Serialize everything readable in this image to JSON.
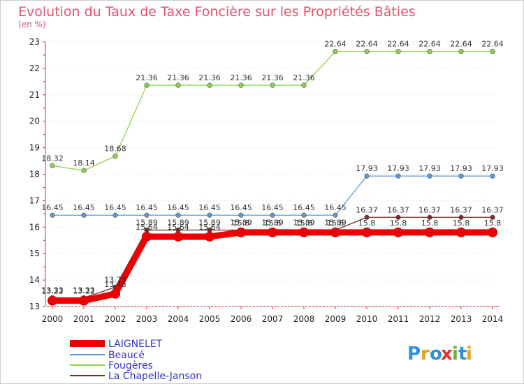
{
  "chart_data": {
    "type": "line",
    "title": "Evolution du Taux de Taxe Foncière sur les Propriétés Bâties",
    "ylabel": "(en %)",
    "xlabel": "",
    "x": [
      "2000",
      "2001",
      "2002",
      "2003",
      "2004",
      "2005",
      "2006",
      "2007",
      "2008",
      "2009",
      "2010",
      "2011",
      "2012",
      "2013",
      "2014"
    ],
    "ylim": [
      13,
      23
    ],
    "yticks": [
      "13",
      "14",
      "15",
      "16",
      "17",
      "18",
      "19",
      "20",
      "21",
      "22",
      "23"
    ],
    "series": [
      {
        "name": "LAIGNELET",
        "color": "#ee0000",
        "values": [
          13.22,
          13.22,
          13.48,
          15.64,
          15.64,
          15.64,
          15.8,
          15.8,
          15.8,
          15.8,
          15.8,
          15.8,
          15.8,
          15.8,
          15.8
        ],
        "labels": [
          "13.22",
          "13.22",
          "13.48",
          "15.64",
          "15.64",
          "15.64",
          "15.8",
          "15.8",
          "15.8",
          "15.8",
          "15.8",
          "15.8",
          "15.8",
          "15.8",
          "15.8"
        ]
      },
      {
        "name": "Beaucé",
        "color": "#5b9bd5",
        "values": [
          16.45,
          16.45,
          16.45,
          16.45,
          16.45,
          16.45,
          16.45,
          16.45,
          16.45,
          16.45,
          17.93,
          17.93,
          17.93,
          17.93,
          17.93
        ],
        "labels": [
          "16.45",
          "16.45",
          "16.45",
          "16.45",
          "16.45",
          "16.45",
          "16.45",
          "16.45",
          "16.45",
          "16.45",
          "17.93",
          "17.93",
          "17.93",
          "17.93",
          "17.93"
        ]
      },
      {
        "name": "Fougères",
        "color": "#8fd14f",
        "values": [
          18.32,
          18.14,
          18.68,
          21.36,
          21.36,
          21.36,
          21.36,
          21.36,
          21.36,
          22.64,
          22.64,
          22.64,
          22.64,
          22.64,
          22.64
        ],
        "labels": [
          "18.32",
          "18.14",
          "18.68",
          "21.36",
          "21.36",
          "21.36",
          "21.36",
          "21.36",
          "21.36",
          "22.64",
          "22.64",
          "22.64",
          "22.64",
          "22.64",
          "22.64"
        ]
      },
      {
        "name": "La Chapelle-Janson",
        "color": "#7a2c2c",
        "values": [
          13.33,
          13.33,
          13.73,
          15.89,
          15.89,
          15.89,
          15.89,
          15.89,
          15.89,
          15.89,
          16.37,
          16.37,
          16.37,
          16.37,
          16.37
        ],
        "labels": [
          "13.33",
          "13.33",
          "13.73",
          "15.89",
          "15.89",
          "15.89",
          "15.89",
          "15.89",
          "15.89",
          "15.89",
          "16.37",
          "16.37",
          "16.37",
          "16.37",
          "16.37"
        ]
      }
    ],
    "legend_position": "bottom-left"
  },
  "logo": {
    "text": "Proxiti",
    "letters": [
      "P",
      "r",
      "o",
      "x",
      "i",
      "t",
      "i"
    ],
    "colors": [
      "#2f8fd8",
      "#e8a21a",
      "#2f8fd8",
      "#e83030",
      "#6ab23a",
      "#2f8fd8",
      "#e8a21a"
    ]
  }
}
